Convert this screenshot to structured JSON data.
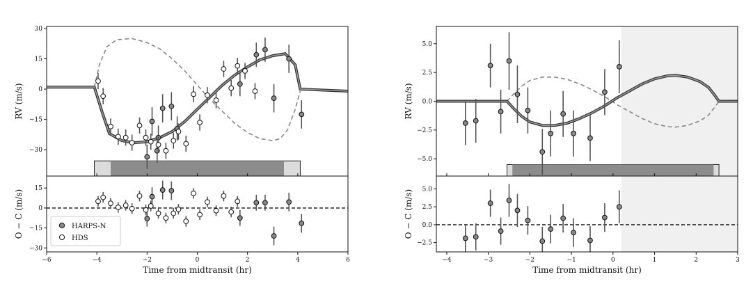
{
  "chart_data": [
    {
      "type": "scatter",
      "panel": "left",
      "xlabel": "Time from midtransit (hr)",
      "ylabel_top": "RV (m/s)",
      "ylabel_bottom": "O − C (m/s)",
      "xlim": [
        -6,
        6
      ],
      "ylim_top": [
        -43,
        31
      ],
      "ylim_bottom": [
        -33,
        24
      ],
      "xticks": [
        -6,
        -4,
        -2,
        0,
        2,
        4,
        6
      ],
      "xtick_labels": [
        "−6",
        "−4",
        "−2",
        "0",
        "2",
        "4",
        "6"
      ],
      "yticks_top": [
        30,
        15,
        0,
        -15,
        -30
      ],
      "ytick_labels_top": [
        "30",
        "15",
        "0",
        "−15",
        "−30"
      ],
      "yticks_bottom": [
        15,
        0,
        -15,
        -30
      ],
      "ytick_labels_bottom": [
        "15",
        "0",
        "−15",
        "−30"
      ],
      "legend": {
        "position": "lower-left",
        "entries": [
          {
            "label": "HARPS-N",
            "marker": "filled",
            "color": "#888888"
          },
          {
            "label": "HDS",
            "marker": "open",
            "color": "#ffffff"
          }
        ]
      },
      "transit_bar": {
        "outer": [
          -4.1,
          4.1
        ],
        "inner": [
          -3.45,
          3.45
        ],
        "y_top": -35.5,
        "y_bottom": -43
      },
      "model_solid": {
        "x": [
          -6,
          -4.1,
          -3.8,
          -3.5,
          -3.0,
          -2.5,
          -2.0,
          -1.5,
          -1.0,
          -0.5,
          0,
          0.5,
          1.0,
          1.5,
          2.0,
          2.5,
          3.0,
          3.5,
          3.9,
          4.1,
          6
        ],
        "y": [
          1,
          1,
          -11,
          -22,
          -25.5,
          -26.5,
          -26,
          -24,
          -21,
          -16,
          -10,
          -4,
          2,
          7,
          11,
          14.5,
          16.5,
          17.5,
          12,
          0,
          -1
        ]
      },
      "model_dashed": {
        "x": [
          -4.1,
          -3.9,
          -3.6,
          -3.2,
          -2.6,
          -2.0,
          -1.5,
          -1.0,
          -0.5,
          0,
          0.5,
          1.0,
          1.5,
          2.0,
          2.5,
          3.0,
          3.3,
          3.6,
          3.9,
          4.1
        ],
        "y": [
          1,
          12,
          21,
          24.5,
          25,
          23,
          20,
          15,
          9,
          2,
          -5,
          -11,
          -17,
          -21.5,
          -24.5,
          -25.5,
          -24.5,
          -20,
          -10,
          -1
        ]
      },
      "series": [
        {
          "name": "HARPS-N",
          "color": "#888888",
          "x": [
            -1.8,
            -1.38,
            -1.03,
            -1.55,
            -2.0,
            -1.6,
            -0.8,
            1.7,
            2.35,
            2.7,
            3.05,
            3.65,
            4.15
          ],
          "y": [
            -16,
            -9.5,
            -8.5,
            -24,
            -33.5,
            -30.5,
            -19.5,
            2.5,
            17,
            19.5,
            -4.5,
            15,
            -12.5
          ],
          "yerr": [
            7,
            7,
            7,
            6,
            6,
            6,
            6,
            6,
            6,
            6,
            7,
            7,
            7
          ]
        },
        {
          "name": "HDS",
          "color": "#ffffff",
          "x": [
            -3.95,
            -3.75,
            -3.45,
            -3.15,
            -2.85,
            -2.6,
            -2.3,
            -2.05,
            -1.85,
            -1.55,
            -1.25,
            -0.95,
            -0.75,
            -0.45,
            -0.15,
            0.1,
            0.4,
            0.75,
            1.05,
            1.35,
            1.6,
            1.9,
            2.3
          ],
          "y": [
            4,
            -3.5,
            -18.5,
            -23.5,
            -24,
            -26.5,
            -18,
            -24,
            -26,
            -27.5,
            -30.5,
            -25.5,
            -21,
            -27,
            -2.5,
            -16.5,
            -3,
            -5.5,
            10,
            0.5,
            11.5,
            9,
            -1
          ],
          "yerr": [
            4,
            4,
            4,
            4,
            4,
            4,
            4,
            4,
            4,
            4,
            4,
            4,
            4,
            4,
            4,
            4,
            4,
            4,
            4,
            4,
            4,
            4,
            4
          ]
        }
      ],
      "residuals": [
        {
          "name": "HARPS-N",
          "color": "#888888",
          "x": [
            -1.8,
            -1.38,
            -1.03,
            -2.0,
            1.7,
            2.35,
            2.7,
            3.05,
            3.65,
            4.15
          ],
          "y": [
            8.5,
            13.5,
            13,
            -8,
            -7.5,
            4,
            4,
            -21,
            4.5,
            -11.5
          ],
          "yerr": [
            7,
            7,
            7,
            6,
            6,
            6,
            6,
            7,
            7,
            7
          ]
        },
        {
          "name": "HDS",
          "color": "#ffffff",
          "x": [
            -3.95,
            -3.75,
            -3.45,
            -3.15,
            -2.85,
            -2.6,
            -2.3,
            -2.05,
            -1.85,
            -1.55,
            -1.25,
            -0.95,
            -0.75,
            -0.45,
            -0.15,
            0.1,
            0.4,
            0.75,
            1.05,
            1.35,
            1.6
          ],
          "y": [
            5,
            8,
            3.5,
            0.5,
            2,
            -0.5,
            9,
            -1.5,
            1.5,
            -4,
            -7.5,
            -4,
            -1,
            -10,
            11,
            -5,
            4.5,
            -2,
            9,
            -3,
            5
          ],
          "yerr": [
            4,
            4,
            4,
            4,
            4,
            4,
            4,
            4,
            4,
            4,
            4,
            4,
            4,
            4,
            4,
            4,
            4,
            4,
            4,
            4,
            4
          ]
        }
      ]
    },
    {
      "type": "scatter",
      "panel": "right",
      "xlabel": "Time from midtransit (hr)",
      "ylabel_top": "RV (m/s)",
      "ylabel_bottom": "O − C (m/s)",
      "xlim": [
        -4.25,
        3
      ],
      "ylim_top": [
        -6.5,
        6.5
      ],
      "ylim_bottom": [
        -3.8,
        6.8
      ],
      "xticks": [
        -4,
        -3,
        -2,
        -1,
        0,
        1,
        2,
        3
      ],
      "xtick_labels": [
        "−4",
        "−3",
        "−2",
        "−1",
        "0",
        "1",
        "2",
        "3"
      ],
      "yticks_top": [
        5,
        2.5,
        0,
        -2.5,
        -5
      ],
      "ytick_labels_top": [
        "5.0",
        "2.5",
        "0.0",
        "−2.5",
        "−5.0"
      ],
      "yticks_bottom": [
        5,
        2.5,
        0,
        -2.5
      ],
      "ytick_labels_bottom": [
        "5.0",
        "2.5",
        "0.0",
        "−2.5"
      ],
      "shaded_region": [
        0.2,
        3
      ],
      "transit_bar": {
        "outer": [
          -2.55,
          2.55
        ],
        "inner": [
          -2.42,
          2.42
        ],
        "y_top": -5.5,
        "y_bottom": -6.5
      },
      "model_solid": {
        "x": [
          -4.25,
          -2.55,
          -2.4,
          -2.2,
          -2.0,
          -1.7,
          -1.4,
          -1.1,
          -0.8,
          -0.5,
          -0.2,
          0.1,
          0.4,
          0.7,
          1.0,
          1.3,
          1.5,
          1.8,
          2.1,
          2.3,
          2.45,
          2.55,
          3
        ],
        "y": [
          0,
          0,
          -0.6,
          -1.3,
          -1.8,
          -2.1,
          -2.1,
          -1.9,
          -1.5,
          -1.0,
          -0.4,
          0.3,
          0.9,
          1.5,
          1.95,
          2.2,
          2.25,
          2.1,
          1.7,
          1.2,
          0.5,
          0,
          0
        ]
      },
      "model_dashed": {
        "x": [
          -2.55,
          -2.4,
          -2.2,
          -2.0,
          -1.7,
          -1.4,
          -1.1,
          -0.8,
          -0.5,
          -0.2,
          0.1,
          0.4,
          0.7,
          1.0,
          1.3,
          1.5,
          1.8,
          2.1,
          2.3,
          2.45,
          2.55
        ],
        "y": [
          0,
          0.6,
          1.3,
          1.8,
          2.1,
          2.1,
          1.9,
          1.5,
          1.0,
          0.4,
          -0.3,
          -0.9,
          -1.5,
          -1.95,
          -2.2,
          -2.25,
          -2.1,
          -1.7,
          -1.2,
          -0.5,
          0
        ]
      },
      "series": [
        {
          "name": "HARPS-N",
          "color": "#888888",
          "x": [
            -3.55,
            -3.3,
            -2.95,
            -2.7,
            -2.5,
            -2.3,
            -2.05,
            -1.7,
            -1.5,
            -1.2,
            -0.95,
            -0.55,
            -0.2,
            0.15
          ],
          "y": [
            -1.9,
            -1.7,
            3.1,
            -0.9,
            3.5,
            0.6,
            -0.8,
            -4.4,
            -2.8,
            -1.1,
            -2.8,
            -3.2,
            0.8,
            3.0
          ],
          "yerr": [
            1.9,
            1.9,
            1.9,
            1.9,
            2.5,
            2.5,
            2.0,
            2.0,
            2.0,
            2.0,
            2.0,
            2.0,
            2.0,
            2.3
          ]
        }
      ],
      "residuals": [
        {
          "name": "HARPS-N",
          "color": "#888888",
          "x": [
            -3.55,
            -3.3,
            -2.95,
            -2.7,
            -2.5,
            -2.3,
            -2.05,
            -1.7,
            -1.5,
            -1.2,
            -0.95,
            -0.55,
            -0.2,
            0.15
          ],
          "y": [
            -1.9,
            -1.7,
            3.0,
            -0.9,
            3.4,
            2.0,
            0.6,
            -2.3,
            -0.6,
            0.9,
            -1.1,
            -2.2,
            1.0,
            2.5
          ],
          "yerr": [
            1.9,
            1.9,
            1.9,
            1.9,
            2.3,
            2.3,
            2.0,
            2.0,
            2.0,
            2.0,
            2.0,
            2.0,
            2.0,
            2.3
          ]
        }
      ]
    }
  ]
}
